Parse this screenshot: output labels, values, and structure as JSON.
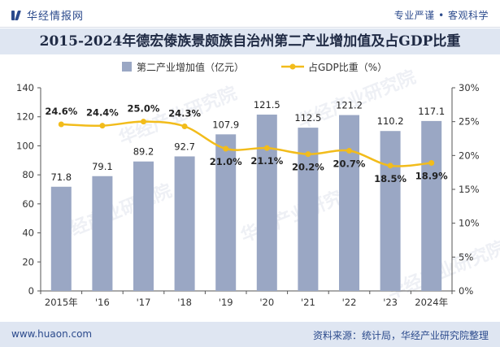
{
  "brand": {
    "name": "华经情报网",
    "tagline": "专业严谨 • 客观科学",
    "logo_icon": "huajing-logo-icon"
  },
  "footer": {
    "url": "www.huaon.com",
    "source": "资料来源：统计局，华经产业研究院整理"
  },
  "watermark": "华经产业研究院",
  "chart_data": {
    "type": "bar+line",
    "title": "2015-2024年德宏傣族景颇族自治州第二产业增加值及占GDP比重",
    "categories": [
      "2015年",
      "'16",
      "'17",
      "'18",
      "'19",
      "'20",
      "'21",
      "'22",
      "'23",
      "2024年"
    ],
    "legend": [
      "第二产业增加值（亿元）",
      "占GDP比重（%）"
    ],
    "legend_position": "top-center",
    "series": [
      {
        "name": "第二产业增加值（亿元）",
        "type": "bar",
        "axis": "left",
        "color": "#9aa7c4",
        "values": [
          71.8,
          79.1,
          89.2,
          92.7,
          107.9,
          121.5,
          112.5,
          121.2,
          110.2,
          117.1
        ],
        "labels": [
          "71.8",
          "79.1",
          "89.2",
          "92.7",
          "107.9",
          "121.5",
          "112.5",
          "121.2",
          "110.2",
          "117.1"
        ]
      },
      {
        "name": "占GDP比重（%）",
        "type": "line",
        "axis": "right",
        "color": "#f2bc1b",
        "values": [
          24.6,
          24.4,
          25.0,
          24.3,
          21.0,
          21.1,
          20.2,
          20.7,
          18.5,
          18.9
        ],
        "labels": [
          "24.6%",
          "24.4%",
          "25.0%",
          "24.3%",
          "21.0%",
          "21.1%",
          "20.2%",
          "20.7%",
          "18.5%",
          "18.9%"
        ]
      }
    ],
    "y_left": {
      "min": 0,
      "max": 140,
      "ticks": [
        0,
        20,
        40,
        60,
        80,
        100,
        120,
        140
      ],
      "tick_labels": [
        "0",
        "20",
        "40",
        "60",
        "80",
        "100",
        "120",
        "140"
      ]
    },
    "y_right": {
      "min": 0,
      "max": 30,
      "ticks": [
        0,
        5,
        10,
        15,
        20,
        25,
        30
      ],
      "tick_labels": [
        "0%",
        "5%",
        "10%",
        "15%",
        "20%",
        "25%",
        "30%"
      ]
    },
    "grid": false
  }
}
